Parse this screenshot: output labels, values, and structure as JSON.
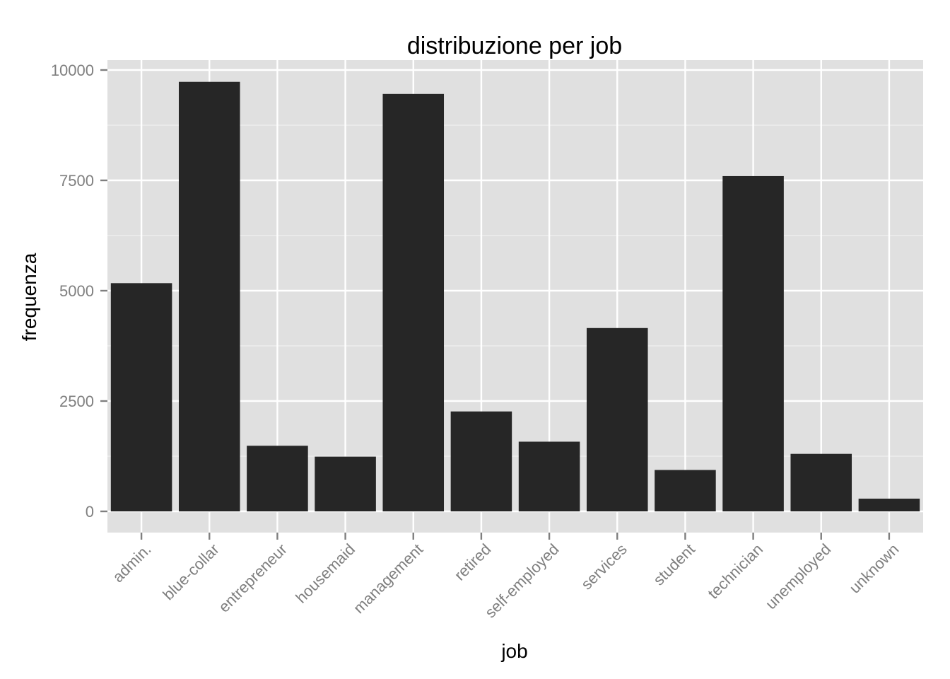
{
  "chart_data": {
    "type": "bar",
    "title": "distribuzione per job",
    "xlabel": "job",
    "ylabel": "frequenza",
    "categories": [
      "admin.",
      "blue-collar",
      "entrepreneur",
      "housemaid",
      "management",
      "retired",
      "self-employed",
      "services",
      "student",
      "technician",
      "unemployed",
      "unknown"
    ],
    "values": [
      5171,
      9732,
      1487,
      1240,
      9458,
      2264,
      1579,
      4154,
      938,
      7597,
      1303,
      288
    ],
    "ylim": [
      -500,
      10200
    ],
    "yticks": [
      0,
      2500,
      5000,
      7500,
      10000
    ],
    "ytick_labels": [
      "0",
      "2500",
      "5000",
      "7500",
      "10000"
    ],
    "grid": true,
    "legend": "none",
    "colors": {
      "panel_background": "#e0e0e0",
      "grid_major": "#ffffff",
      "grid_minor": "#f0f0f0",
      "bar_fill": "#262626",
      "tick_text": "#7f7f7f",
      "tick_mark": "#7f7f7f"
    }
  }
}
